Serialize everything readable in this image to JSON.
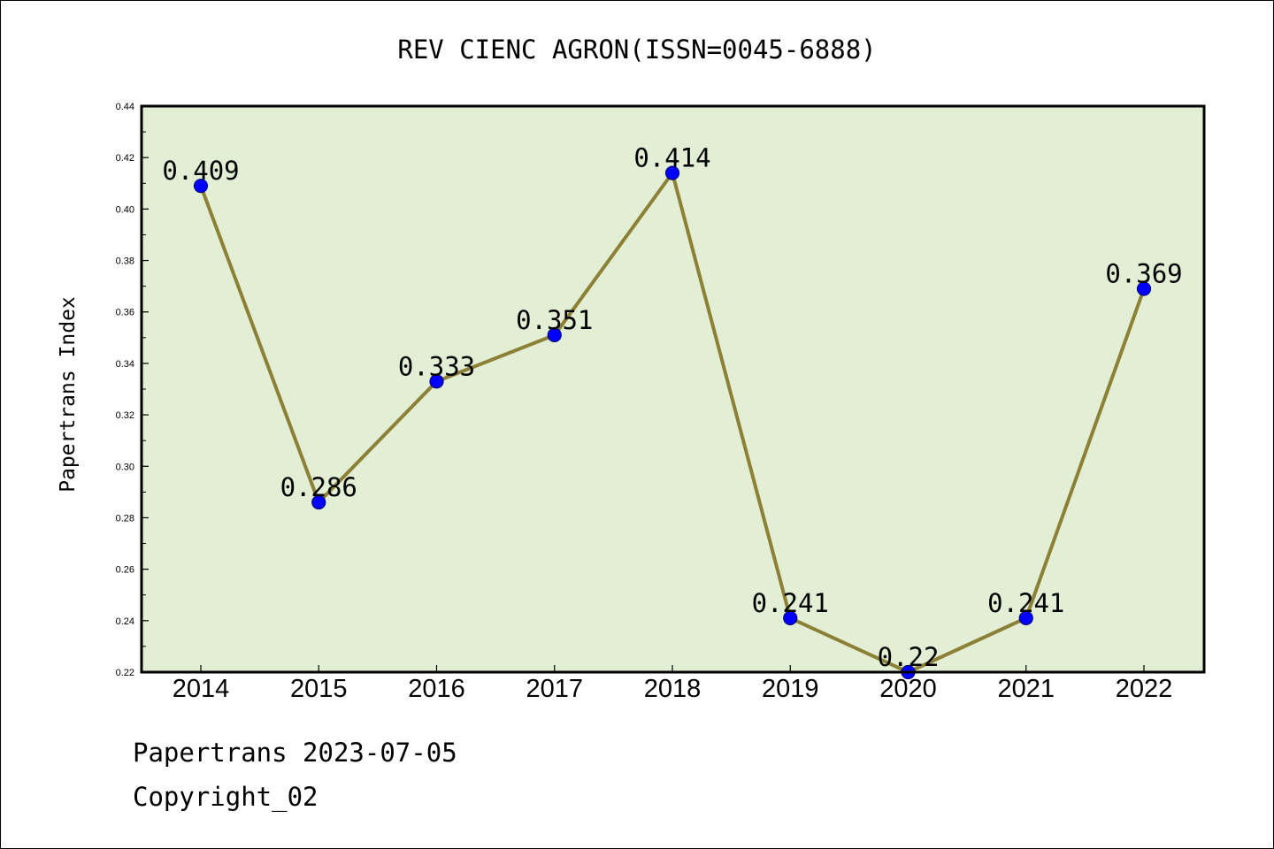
{
  "chart_data": {
    "type": "line",
    "title": "REV CIENC AGRON(ISSN=0045-6888)",
    "xlabel": "",
    "ylabel": "Papertrans Index",
    "categories": [
      "2014",
      "2015",
      "2016",
      "2017",
      "2018",
      "2019",
      "2020",
      "2021",
      "2022"
    ],
    "values": [
      0.409,
      0.286,
      0.333,
      0.351,
      0.414,
      0.241,
      0.22,
      0.241,
      0.369
    ],
    "value_labels": [
      "0.409",
      "0.286",
      "0.333",
      "0.351",
      "0.414",
      "0.241",
      "0.22",
      "0.241",
      "0.369"
    ],
    "ylim": [
      0.22,
      0.44
    ],
    "yticks": [
      "0.22",
      "0.24",
      "0.26",
      "0.28",
      "0.30",
      "0.32",
      "0.34",
      "0.36",
      "0.38",
      "0.40",
      "0.42",
      "0.44"
    ],
    "grid": false,
    "legend": "none",
    "colors": {
      "plot_background": "#e2efd4",
      "line": "#8b8035",
      "marker_fill": "#0000ff",
      "marker_stroke": "#000080",
      "axis": "#000000"
    }
  },
  "footer": {
    "date_line": "Papertrans 2023-07-05",
    "copyright_line": "Copyright_02"
  }
}
